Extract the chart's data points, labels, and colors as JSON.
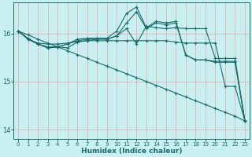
{
  "xlabel": "Humidex (Indice chaleur)",
  "bg_color": "#c8f0f0",
  "grid_color": "#f0a0a0",
  "line_color": "#1a6b6b",
  "xlim": [
    0,
    23
  ],
  "ylim": [
    13.8,
    16.65
  ],
  "yticks": [
    14,
    15,
    16
  ],
  "xticks": [
    0,
    1,
    2,
    3,
    4,
    5,
    6,
    7,
    8,
    9,
    10,
    11,
    12,
    13,
    14,
    15,
    16,
    17,
    18,
    19,
    20,
    21,
    22,
    23
  ],
  "series": [
    {
      "x": [
        0,
        1,
        2,
        3,
        4,
        5,
        6,
        7,
        8,
        9,
        10,
        11,
        12,
        13,
        14,
        15,
        16,
        17,
        18,
        19,
        20,
        21,
        22,
        23
      ],
      "y": [
        16.05,
        15.97,
        15.88,
        15.8,
        15.72,
        15.64,
        15.56,
        15.48,
        15.4,
        15.32,
        15.24,
        15.16,
        15.08,
        15.0,
        14.92,
        14.84,
        14.76,
        14.68,
        14.6,
        14.52,
        14.44,
        14.36,
        14.28,
        14.18
      ]
    },
    {
      "x": [
        0,
        1,
        2,
        3,
        4,
        5,
        6,
        7,
        8,
        9,
        10,
        11,
        12,
        13,
        14,
        15,
        16,
        17,
        18,
        19,
        20,
        21,
        22,
        23
      ],
      "y": [
        16.05,
        15.88,
        15.8,
        15.78,
        15.78,
        15.8,
        15.83,
        15.85,
        15.85,
        15.85,
        15.85,
        15.85,
        15.85,
        15.85,
        15.85,
        15.85,
        15.82,
        15.8,
        15.8,
        15.8,
        15.8,
        14.9,
        14.9,
        14.18
      ]
    },
    {
      "x": [
        0,
        1,
        2,
        3,
        4,
        5,
        6,
        7,
        8,
        9,
        10,
        11,
        12,
        13,
        14,
        15,
        16,
        17,
        18,
        19,
        20,
        21,
        22,
        23
      ],
      "y": [
        16.05,
        15.9,
        15.78,
        15.7,
        15.72,
        15.7,
        15.82,
        15.85,
        15.88,
        15.88,
        15.95,
        16.1,
        15.78,
        16.15,
        16.12,
        16.1,
        16.12,
        16.1,
        16.1,
        16.1,
        15.48,
        15.48,
        15.48,
        14.18
      ]
    },
    {
      "x": [
        0,
        1,
        2,
        3,
        4,
        5,
        6,
        7,
        8,
        9,
        10,
        11,
        12,
        13,
        14,
        15,
        16,
        17,
        18,
        19,
        20,
        21,
        22,
        23
      ],
      "y": [
        16.05,
        15.88,
        15.78,
        15.7,
        15.72,
        15.78,
        15.85,
        15.88,
        15.9,
        15.88,
        15.95,
        16.22,
        16.45,
        16.1,
        16.22,
        16.18,
        16.22,
        15.55,
        15.45,
        15.45,
        15.4,
        15.4,
        15.4,
        14.18
      ]
    },
    {
      "comment": "highest peaks x=11 ~16.4, x=12 ~16.5, plateau ~16.22, drops sharply",
      "x": [
        0,
        1,
        2,
        3,
        4,
        5,
        6,
        7,
        8,
        9,
        10,
        11,
        12,
        13,
        14,
        15,
        16,
        17,
        18,
        19,
        20,
        21,
        22,
        23
      ],
      "y": [
        16.05,
        15.88,
        15.78,
        15.72,
        15.72,
        15.78,
        15.88,
        15.9,
        15.9,
        15.9,
        16.05,
        16.42,
        16.55,
        16.12,
        16.25,
        16.22,
        16.25,
        15.55,
        15.45,
        15.45,
        15.42,
        15.42,
        15.42,
        14.18
      ]
    }
  ]
}
